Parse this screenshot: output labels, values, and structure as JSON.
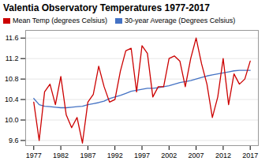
{
  "chart_data": {
    "type": "line",
    "title": "Valentia Observatory Temperatures 1977-2017",
    "x": [
      1977,
      1978,
      1979,
      1980,
      1981,
      1982,
      1983,
      1984,
      1985,
      1986,
      1987,
      1988,
      1989,
      1990,
      1991,
      1992,
      1993,
      1994,
      1995,
      1996,
      1997,
      1998,
      1999,
      2000,
      2001,
      2002,
      2003,
      2004,
      2005,
      2006,
      2007,
      2008,
      2009,
      2010,
      2011,
      2012,
      2013,
      2014,
      2015,
      2016,
      2017
    ],
    "series": [
      {
        "name": "Mean Temp (degrees Celsius)",
        "color": "#cc0000",
        "values": [
          10.35,
          9.6,
          10.55,
          10.7,
          10.3,
          10.85,
          10.1,
          9.85,
          10.05,
          9.55,
          10.35,
          10.5,
          11.05,
          10.65,
          10.35,
          10.4,
          10.95,
          11.35,
          11.4,
          10.55,
          11.45,
          11.3,
          10.45,
          10.65,
          10.65,
          11.2,
          11.25,
          11.15,
          10.65,
          11.2,
          11.6,
          11.1,
          10.7,
          10.05,
          10.45,
          11.2,
          10.3,
          10.9,
          10.7,
          10.8,
          11.15
        ]
      },
      {
        "name": "30-year Average (Degrees Celsius)",
        "color": "#4472c4",
        "values": [
          10.42,
          10.3,
          10.27,
          10.26,
          10.25,
          10.24,
          10.24,
          10.25,
          10.26,
          10.27,
          10.3,
          10.32,
          10.34,
          10.37,
          10.42,
          10.45,
          10.48,
          10.52,
          10.56,
          10.58,
          10.6,
          10.62,
          10.62,
          10.63,
          10.65,
          10.67,
          10.7,
          10.73,
          10.75,
          10.77,
          10.8,
          10.83,
          10.86,
          10.88,
          10.9,
          10.92,
          10.94,
          10.96,
          10.97,
          10.97,
          10.97
        ]
      }
    ],
    "xlim": [
      1975.5,
      2018.5
    ],
    "xticks": [
      1977,
      1982,
      1987,
      1992,
      1997,
      2002,
      2007,
      2012,
      2017
    ],
    "ylim": [
      9.5,
      11.75
    ],
    "yticks": [
      9.6,
      {
        "value": 10.0,
        "label": "10.0"
      },
      10.4,
      10.8,
      11.2,
      11.6
    ],
    "grid": true,
    "legend": "top-left"
  }
}
